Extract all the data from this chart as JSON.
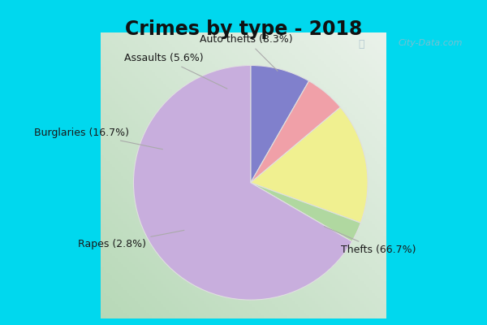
{
  "title": "Crimes by type - 2018",
  "slices": [
    {
      "label": "Thefts (66.7%)",
      "value": 66.7,
      "color": "#c8aedd"
    },
    {
      "label": "Auto thefts (8.3%)",
      "value": 8.3,
      "color": "#8080cc"
    },
    {
      "label": "Assaults (5.6%)",
      "value": 5.6,
      "color": "#f0a0a8"
    },
    {
      "label": "Burglaries (16.7%)",
      "value": 16.7,
      "color": "#f0f090"
    },
    {
      "label": "Rapes (2.8%)",
      "value": 2.8,
      "color": "#b0d8a0"
    }
  ],
  "start_angle": 90,
  "bg_outer": "#00d8ee",
  "bg_inner_left": "#b8ddb0",
  "bg_inner_right": "#e0f0e8",
  "title_fontsize": 17,
  "label_fontsize": 9,
  "watermark": "City-Data.com"
}
